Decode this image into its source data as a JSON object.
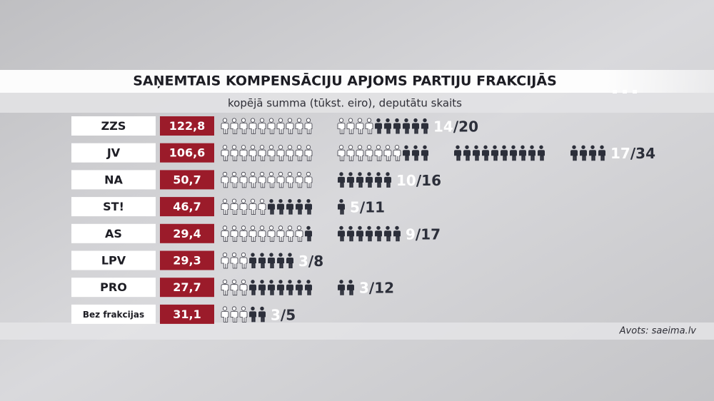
{
  "chart_data": {
    "type": "pictogram",
    "title": "SAŅEMTAIS KOMPENSĀCIJU APJOMS PARTIJU FRAKCIJĀS",
    "subtitle": "kopējā summa (tūkst. eiro), deputātu skaits",
    "categories": [
      "ZZS",
      "JV",
      "NA",
      "ST!",
      "AS",
      "LPV",
      "PRO",
      "Bez frakcijas"
    ],
    "values": [
      122.8,
      106.6,
      50.7,
      46.7,
      29.4,
      29.3,
      27.7,
      31.1
    ],
    "value_labels": [
      "122,8",
      "106,6",
      "50,7",
      "46,7",
      "29,4",
      "29,3",
      "27,7",
      "31,1"
    ],
    "received": [
      14,
      17,
      10,
      5,
      9,
      3,
      3,
      3
    ],
    "totals": [
      20,
      34,
      16,
      11,
      17,
      8,
      12,
      5
    ],
    "total_labels": [
      "/20",
      "/34",
      "/16",
      "/11",
      "/17",
      "/8",
      "/12",
      "/5"
    ],
    "value_color": "#9b1b2a",
    "received_color": "#ffffff",
    "rest_color": "#2c2f3a",
    "source": "Avots: saeima.lv"
  }
}
